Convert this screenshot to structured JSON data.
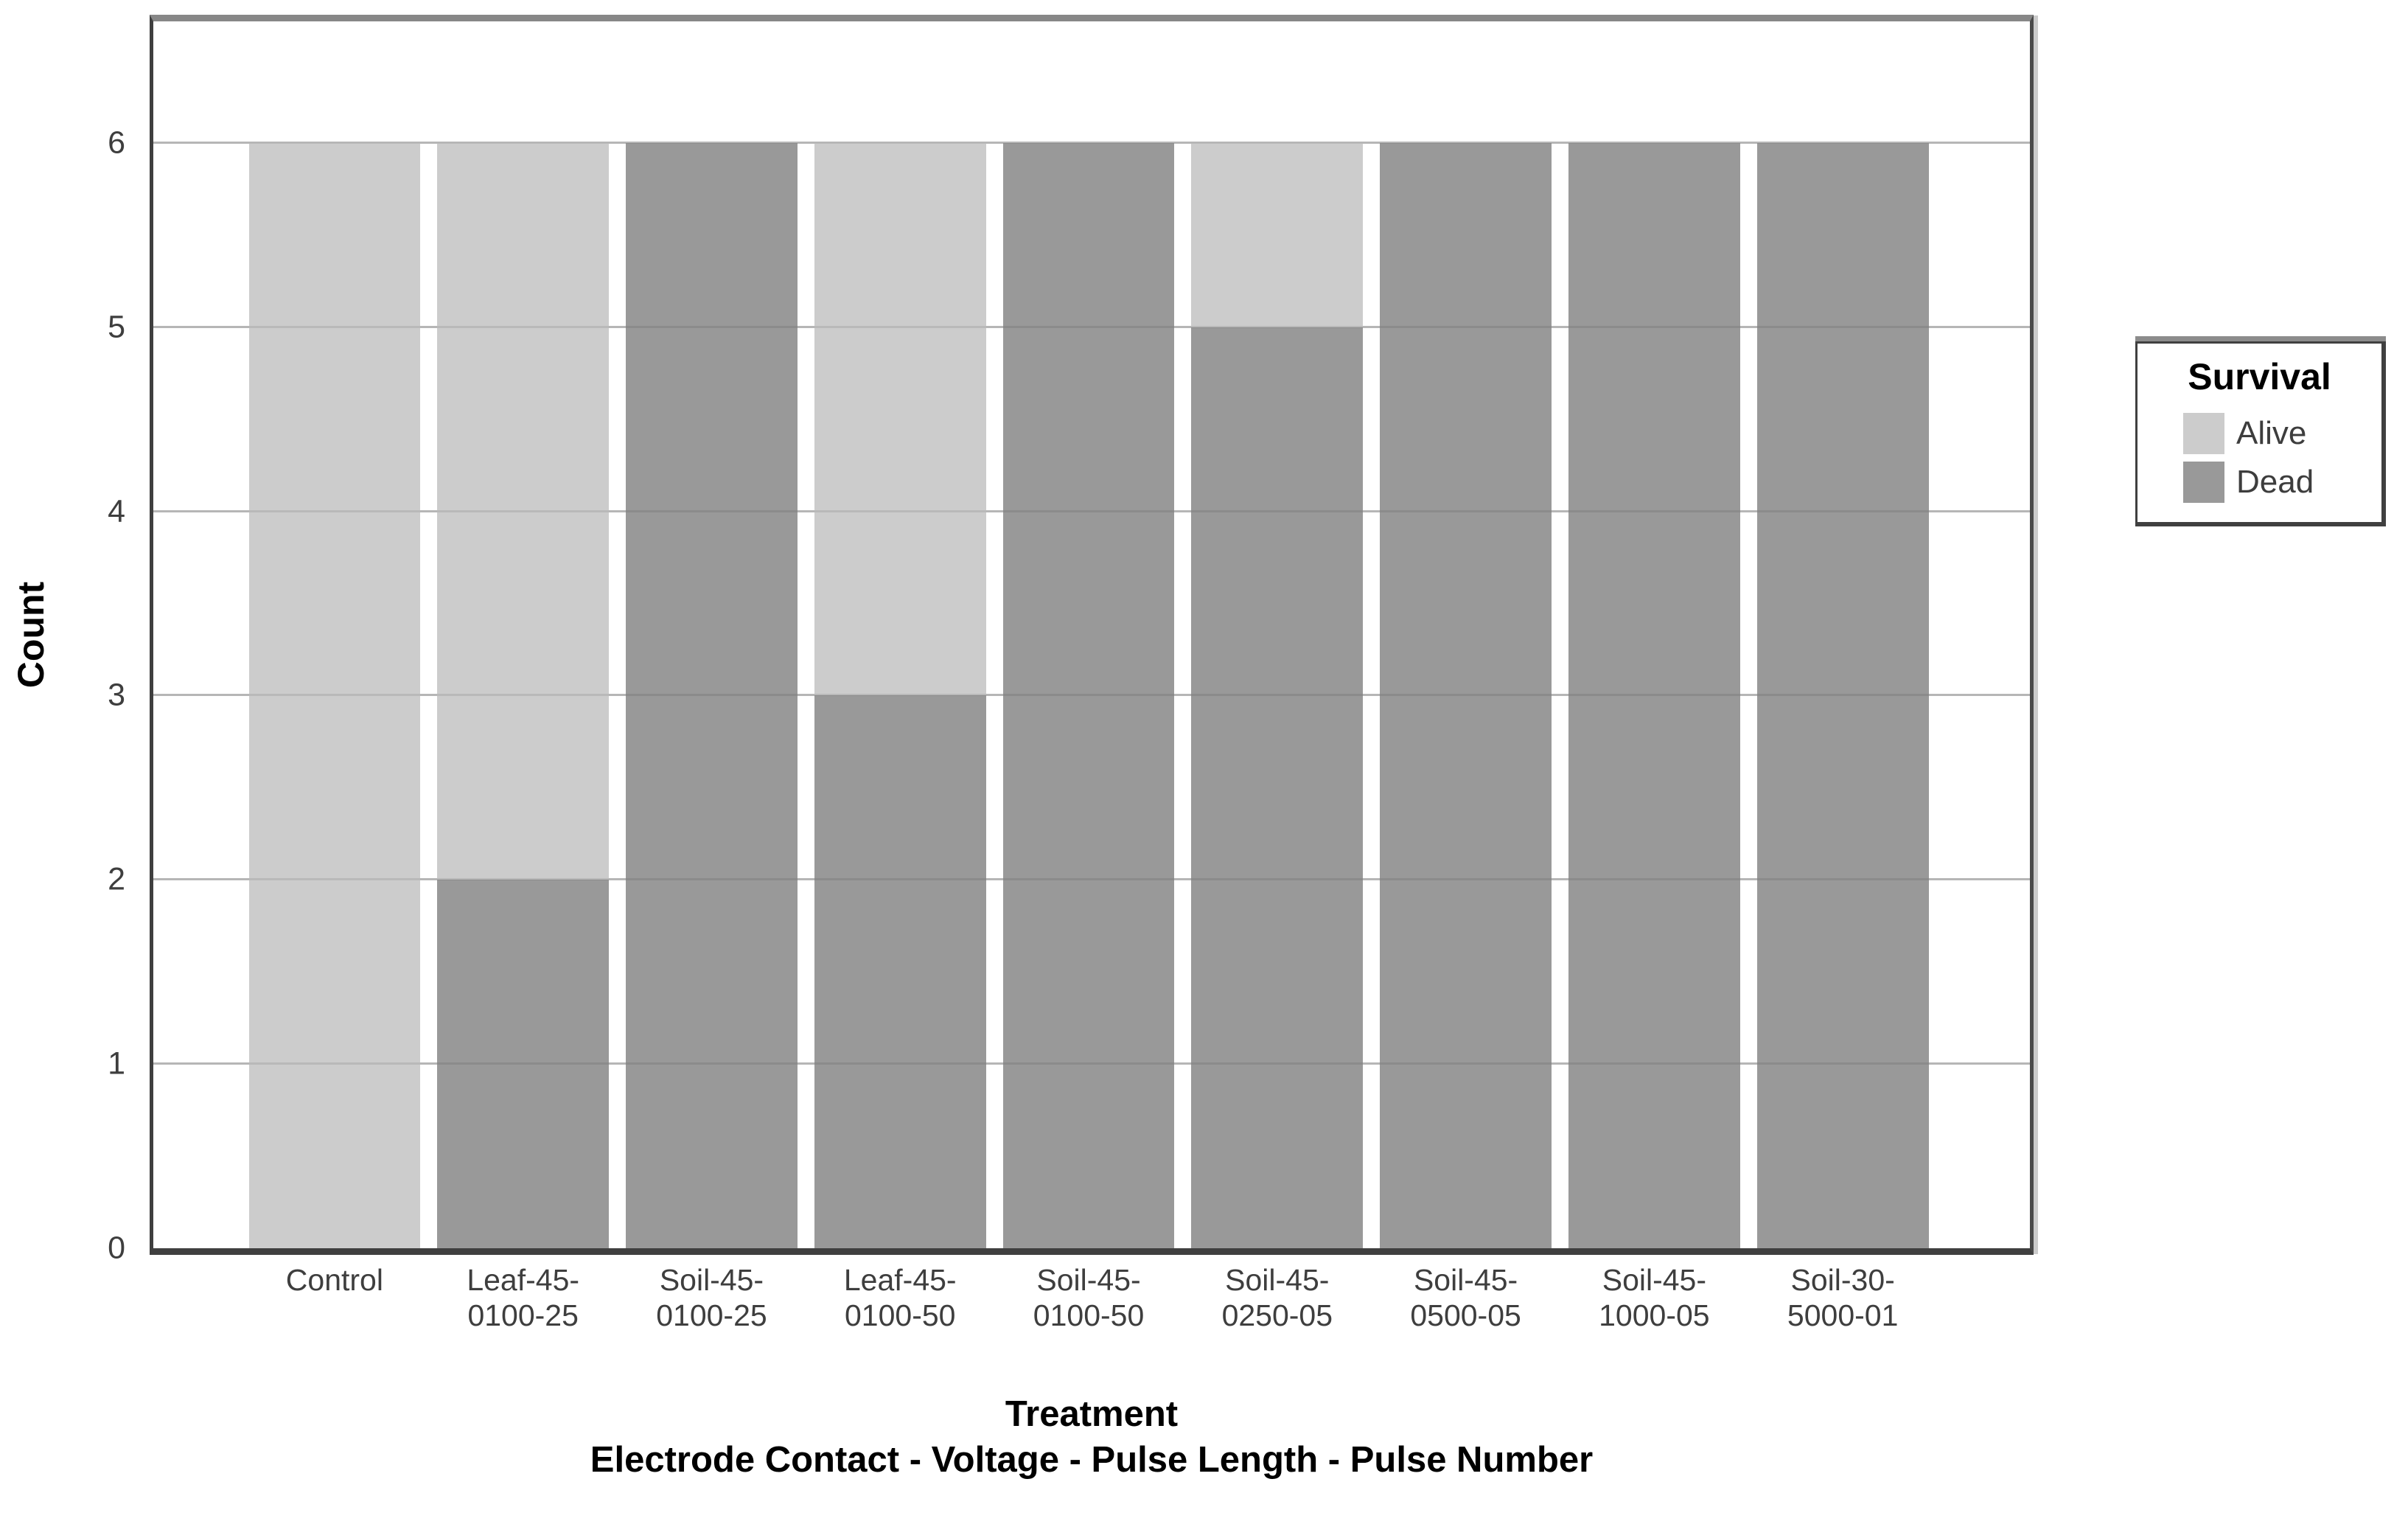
{
  "chart_data": {
    "type": "bar",
    "stacked": true,
    "orientation": "vertical",
    "ylabel": "Count",
    "xlabel": "Treatment",
    "xlabel_subtitle": "Electrode Contact - Voltage - Pulse Length - Pulse Number",
    "ylim": [
      0,
      6.66
    ],
    "yticks": [
      "0",
      "1",
      "2",
      "3",
      "4",
      "5",
      "6"
    ],
    "grid": "horizontal",
    "legend": {
      "title": "Survival",
      "position": "right",
      "entries": [
        "Alive",
        "Dead"
      ]
    },
    "categories": [
      {
        "label": "Control",
        "lines": [
          "Control"
        ]
      },
      {
        "label": "Leaf-45-0100-25",
        "lines": [
          "Leaf-45-",
          "0100-25"
        ]
      },
      {
        "label": "Soil-45-0100-25",
        "lines": [
          "Soil-45-",
          "0100-25"
        ]
      },
      {
        "label": "Leaf-45-0100-50",
        "lines": [
          "Leaf-45-",
          "0100-50"
        ]
      },
      {
        "label": "Soil-45-0100-50",
        "lines": [
          "Soil-45-",
          "0100-50"
        ]
      },
      {
        "label": "Soil-45-0250-05",
        "lines": [
          "Soil-45-",
          "0250-05"
        ]
      },
      {
        "label": "Soil-45-0500-05",
        "lines": [
          "Soil-45-",
          "0500-05"
        ]
      },
      {
        "label": "Soil-45-1000-05",
        "lines": [
          "Soil-45-",
          "1000-05"
        ]
      },
      {
        "label": "Soil-30-5000-01",
        "lines": [
          "Soil-30-",
          "5000-01"
        ]
      }
    ],
    "series": [
      {
        "name": "Alive",
        "color": "#cccccc",
        "values": [
          6,
          4,
          0,
          3,
          0,
          1,
          0,
          0,
          0
        ]
      },
      {
        "name": "Dead",
        "color": "#999999",
        "values": [
          0,
          2,
          6,
          3,
          6,
          5,
          6,
          6,
          6
        ]
      }
    ],
    "colors": {
      "alive": "#cccccc",
      "dead": "#999999",
      "gridline": "#c8c8c8",
      "axis": "#3f3f3f",
      "frame_top": "#878787",
      "tick_label": "#3e3e3e",
      "plot_background": "#ffffff"
    }
  }
}
